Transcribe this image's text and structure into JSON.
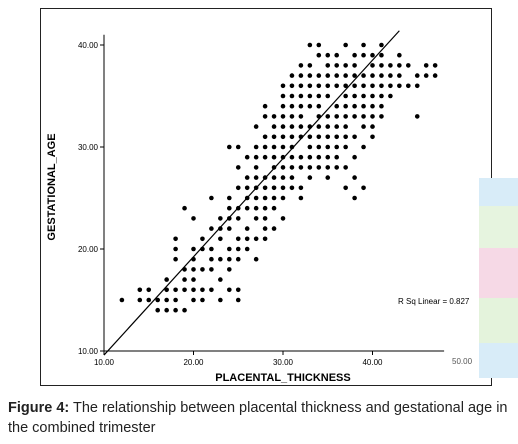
{
  "chart_data": {
    "type": "scatter",
    "xlabel": "PLACENTAL_THICKNESS",
    "ylabel": "GESTATIONAL_AGE",
    "xlim": [
      10,
      48
    ],
    "ylim": [
      10,
      41
    ],
    "xticks": [
      10,
      20,
      30,
      40
    ],
    "yticks": [
      10,
      20,
      30,
      40
    ],
    "xtick_labels": [
      "10.00",
      "20.00",
      "30.00",
      "40.00"
    ],
    "ytick_labels": [
      "10.00",
      "20.00",
      "30.00",
      "40.00"
    ],
    "grid": false,
    "fit_line": {
      "x": [
        10,
        43
      ],
      "y": [
        9.6,
        41.4
      ]
    },
    "annotation": "R Sq Linear = 0.827",
    "columns": [
      {
        "x": 12,
        "ys": [
          15
        ]
      },
      {
        "x": 14,
        "ys": [
          15,
          16
        ]
      },
      {
        "x": 15,
        "ys": [
          15,
          16
        ]
      },
      {
        "x": 16,
        "ys": [
          14,
          15
        ]
      },
      {
        "x": 17,
        "ys": [
          14,
          15,
          16,
          17
        ]
      },
      {
        "x": 18,
        "ys": [
          14,
          15,
          16,
          19,
          20,
          21
        ]
      },
      {
        "x": 19,
        "ys": [
          14,
          16,
          17,
          18,
          24
        ]
      },
      {
        "x": 20,
        "ys": [
          15,
          16,
          17,
          18,
          19,
          20,
          23
        ]
      },
      {
        "x": 21,
        "ys": [
          15,
          16,
          18,
          20,
          21
        ]
      },
      {
        "x": 22,
        "ys": [
          16,
          18,
          19,
          20,
          22,
          25
        ]
      },
      {
        "x": 23,
        "ys": [
          15,
          17,
          19,
          21,
          22,
          23
        ]
      },
      {
        "x": 24,
        "ys": [
          16,
          18,
          19,
          20,
          22,
          23,
          24,
          25,
          30
        ]
      },
      {
        "x": 25,
        "ys": [
          15,
          16,
          19,
          20,
          21,
          23,
          24,
          26,
          28,
          30
        ]
      },
      {
        "x": 26,
        "ys": [
          20,
          21,
          22,
          24,
          25,
          26,
          27,
          29
        ]
      },
      {
        "x": 27,
        "ys": [
          19,
          21,
          23,
          24,
          25,
          26,
          27,
          28,
          29,
          30,
          32
        ]
      },
      {
        "x": 28,
        "ys": [
          21,
          22,
          23,
          24,
          25,
          26,
          27,
          29,
          30,
          31,
          33,
          34
        ]
      },
      {
        "x": 29,
        "ys": [
          22,
          24,
          25,
          26,
          27,
          28,
          29,
          30,
          31,
          32,
          33
        ]
      },
      {
        "x": 30,
        "ys": [
          23,
          25,
          26,
          27,
          28,
          29,
          30,
          31,
          32,
          33,
          34,
          35,
          36
        ]
      },
      {
        "x": 31,
        "ys": [
          26,
          27,
          28,
          29,
          30,
          31,
          32,
          33,
          34,
          35,
          36,
          37
        ]
      },
      {
        "x": 32,
        "ys": [
          25,
          26,
          28,
          29,
          31,
          32,
          33,
          34,
          35,
          36,
          37,
          38
        ]
      },
      {
        "x": 33,
        "ys": [
          27,
          28,
          29,
          30,
          31,
          32,
          34,
          35,
          36,
          37,
          38,
          40
        ]
      },
      {
        "x": 34,
        "ys": [
          28,
          29,
          30,
          31,
          32,
          33,
          34,
          35,
          36,
          37,
          39,
          40
        ]
      },
      {
        "x": 35,
        "ys": [
          27,
          28,
          29,
          30,
          31,
          32,
          33,
          35,
          36,
          37,
          38,
          39
        ]
      },
      {
        "x": 36,
        "ys": [
          28,
          29,
          30,
          31,
          32,
          33,
          34,
          36,
          37,
          38,
          39
        ]
      },
      {
        "x": 37,
        "ys": [
          26,
          28,
          30,
          31,
          32,
          33,
          34,
          35,
          36,
          37,
          38,
          40
        ]
      },
      {
        "x": 38,
        "ys": [
          25,
          27,
          29,
          31,
          33,
          34,
          35,
          36,
          37,
          38,
          39
        ]
      },
      {
        "x": 39,
        "ys": [
          26,
          30,
          32,
          33,
          34,
          35,
          36,
          37,
          39,
          40
        ]
      },
      {
        "x": 40,
        "ys": [
          31,
          32,
          33,
          34,
          35,
          36,
          37,
          38,
          39
        ]
      },
      {
        "x": 41,
        "ys": [
          33,
          34,
          35,
          36,
          37,
          38,
          39,
          40
        ]
      },
      {
        "x": 42,
        "ys": [
          35,
          36,
          37,
          38
        ]
      },
      {
        "x": 43,
        "ys": [
          36,
          37,
          38,
          39
        ]
      },
      {
        "x": 44,
        "ys": [
          36,
          38
        ]
      },
      {
        "x": 45,
        "ys": [
          33,
          36,
          37
        ]
      },
      {
        "x": 46,
        "ys": [
          37,
          38
        ]
      },
      {
        "x": 47,
        "ys": [
          37,
          38
        ]
      }
    ]
  },
  "clipped_tick": "50.00",
  "caption": {
    "label": "Figure 4:",
    "text": " The relationship between placental thickness and gestational age in the combined trimester"
  }
}
